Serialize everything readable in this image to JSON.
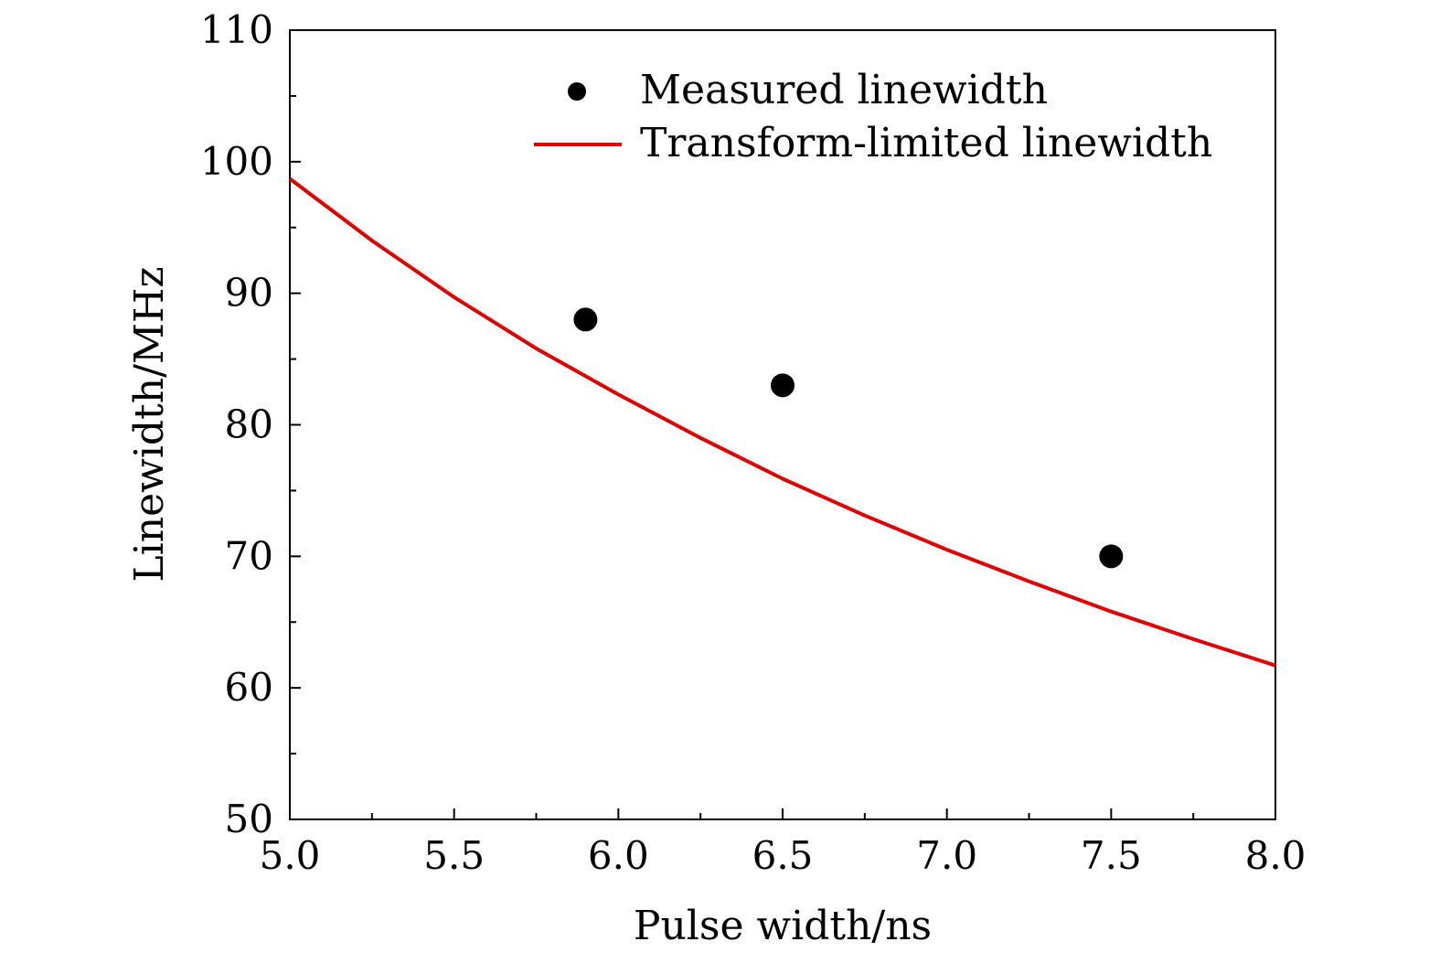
{
  "chart_data": {
    "type": "scatter",
    "title": "",
    "xlabel": "Pulse width/ns",
    "ylabel": "Linewidth/MHz",
    "xlim": [
      5.0,
      8.0
    ],
    "ylim": [
      50,
      110
    ],
    "xticks": [
      "5.0",
      "5.5",
      "6.0",
      "6.5",
      "7.0",
      "7.5",
      "8.0"
    ],
    "yticks": [
      "50",
      "60",
      "70",
      "80",
      "90",
      "100",
      "110"
    ],
    "grid": false,
    "legend_position": "top-right",
    "series": [
      {
        "name": "Measured linewidth",
        "kind": "scatter",
        "color": "#000000",
        "x": [
          5.9,
          6.5,
          7.5
        ],
        "y": [
          88,
          83,
          70
        ]
      },
      {
        "name": "Transform-limited linewidth",
        "kind": "line",
        "color": "#e00000",
        "x": [
          5.0,
          5.25,
          5.5,
          5.75,
          6.0,
          6.25,
          6.5,
          6.75,
          7.0,
          7.25,
          7.5,
          7.75,
          8.0
        ],
        "y": [
          98.7,
          94.0,
          89.7,
          85.8,
          82.3,
          79.0,
          75.9,
          73.1,
          70.5,
          68.1,
          65.8,
          63.7,
          61.7
        ]
      }
    ]
  }
}
